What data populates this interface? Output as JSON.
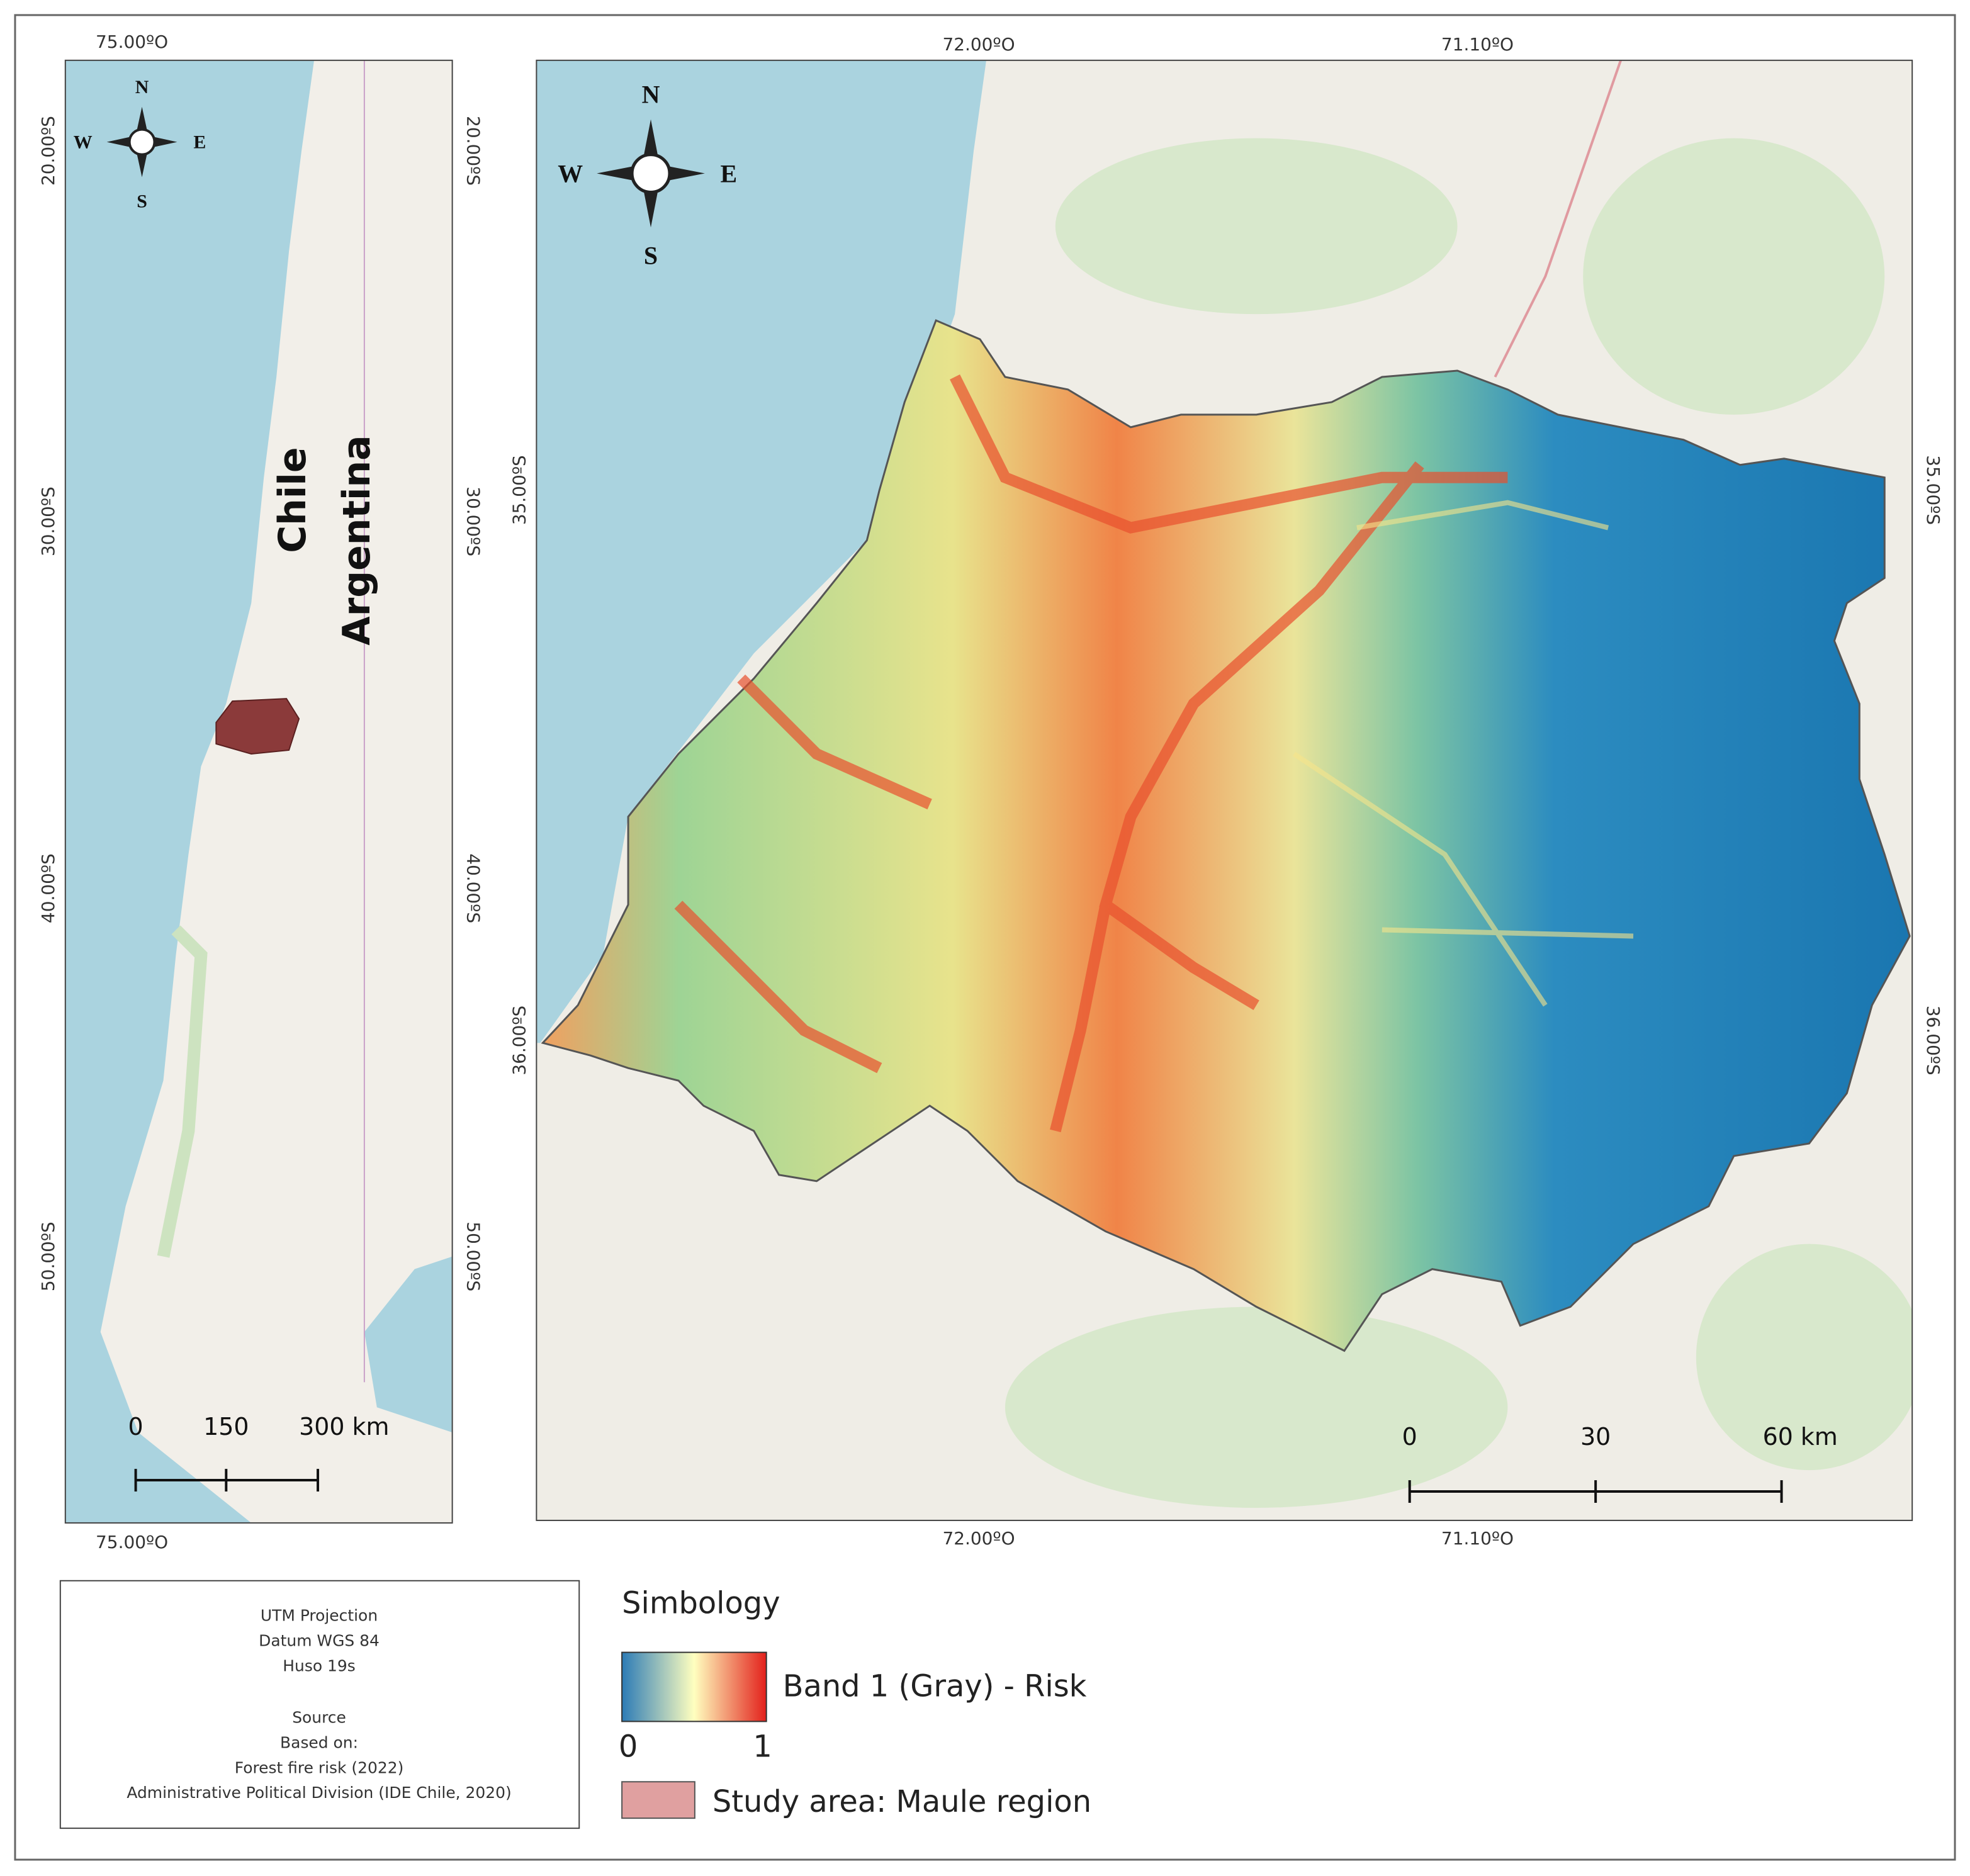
{
  "inset_map": {
    "compass": {
      "north": "N",
      "south": "S",
      "east": "E",
      "west": "W"
    },
    "top_labels": [
      "75.00ºO"
    ],
    "bottom_labels": [
      "75.00ºO"
    ],
    "left_labels": [
      "20.00ºS",
      "30.00ºS",
      "40.00ºS",
      "50.00ºS"
    ],
    "right_labels": [
      "20.00ºS",
      "30.00ºS",
      "40.00ºS",
      "50.00ºS"
    ],
    "country_labels": [
      "Chile",
      "Argentina"
    ],
    "scale_bar": [
      "0",
      "150",
      "300 km"
    ]
  },
  "main_map": {
    "compass": {
      "north": "N",
      "south": "S",
      "east": "E",
      "west": "W"
    },
    "top_labels": [
      "72.00ºO",
      "71.10ºO"
    ],
    "bottom_labels": [
      "72.00ºO",
      "71.10ºO"
    ],
    "left_labels": [
      "35.00ºS",
      "36.00ºS"
    ],
    "right_labels": [
      "35.00ºS",
      "36.00ºS"
    ],
    "scale_bar": [
      "0",
      "30",
      "60 km"
    ]
  },
  "info_box": {
    "projection": [
      "UTM Projection",
      "Datum WGS 84",
      "Huso 19s"
    ],
    "source": [
      "Source",
      "Based on:",
      "Forest fire risk (2022)",
      "Administrative Political Division (IDE Chile, 2020)"
    ]
  },
  "legend": {
    "title": "Simbology",
    "risk": {
      "label": "Band 1 (Gray) - Risk",
      "min_label": "0",
      "max_label": "1"
    },
    "study_area": {
      "label": "Study area: Maule region"
    }
  }
}
